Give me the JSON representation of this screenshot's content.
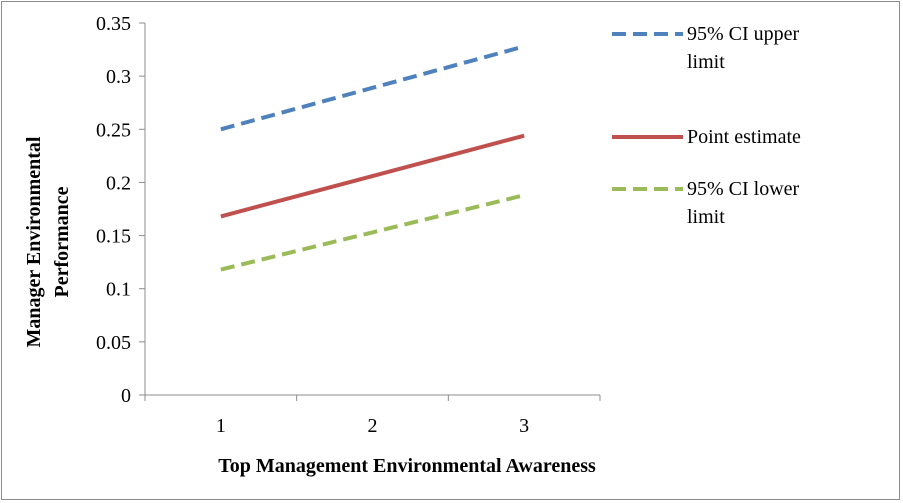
{
  "chart_data": {
    "type": "line",
    "title": "",
    "xlabel": "Top Management Environmental Awareness",
    "ylabel_lines": [
      "Manager Environmental",
      "Performance"
    ],
    "x": [
      1,
      2,
      3
    ],
    "x_ticklabels": [
      "1",
      "2",
      "3"
    ],
    "ylim": [
      0,
      0.35
    ],
    "y_ticks": [
      0,
      0.05,
      0.1,
      0.15,
      0.2,
      0.25,
      0.3,
      0.35
    ],
    "y_ticklabels": [
      "0",
      "0.05",
      "0.1",
      "0.15",
      "0.2",
      "0.25",
      "0.3",
      "0.35"
    ],
    "grid": false,
    "legend_placement": "right",
    "series": [
      {
        "id": "upper",
        "name_lines": [
          "95% CI upper",
          "limit"
        ],
        "values": [
          0.25,
          0.289,
          0.328
        ],
        "color": "#4f81bd",
        "dashed": true
      },
      {
        "id": "point",
        "name_lines": [
          "Point estimate"
        ],
        "values": [
          0.168,
          0.206,
          0.244
        ],
        "color": "#c0504d",
        "dashed": false
      },
      {
        "id": "lower",
        "name_lines": [
          "95% CI lower",
          "limit"
        ],
        "values": [
          0.118,
          0.153,
          0.188
        ],
        "color": "#9bbb59",
        "dashed": true
      }
    ]
  }
}
